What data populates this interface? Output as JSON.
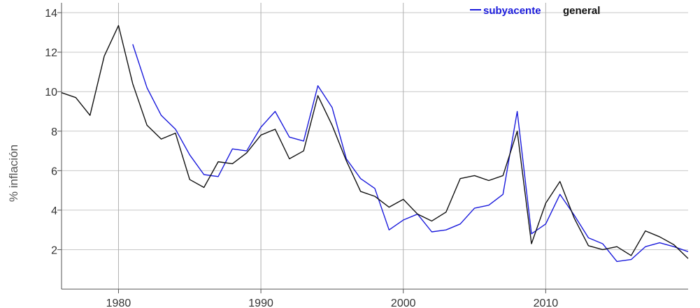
{
  "chart_data": {
    "type": "line",
    "ylabel": "% inflación",
    "xlim": [
      1976,
      2020
    ],
    "ylim": [
      0,
      14.5
    ],
    "x_ticks": [
      1980,
      1990,
      2000,
      2010
    ],
    "y_ticks": [
      2,
      4,
      6,
      8,
      10,
      12,
      14
    ],
    "grid": true,
    "legend_position": "top-right",
    "series": [
      {
        "name": "subyacente",
        "color": "#1a1adc",
        "x": [
          1981,
          1982,
          1983,
          1984,
          1985,
          1986,
          1987,
          1988,
          1989,
          1990,
          1991,
          1992,
          1993,
          1994,
          1995,
          1996,
          1997,
          1998,
          1999,
          2000,
          2001,
          2002,
          2003,
          2004,
          2005,
          2006,
          2007,
          2008,
          2009,
          2010,
          2011,
          2012,
          2013,
          2014,
          2015,
          2016,
          2017,
          2018,
          2019,
          2020
        ],
        "values": [
          12.4,
          10.2,
          8.8,
          8.1,
          6.8,
          5.8,
          5.7,
          7.1,
          7.0,
          8.2,
          9.0,
          7.7,
          7.5,
          10.3,
          9.2,
          6.6,
          5.6,
          5.1,
          3.0,
          3.5,
          3.8,
          2.9,
          3.0,
          3.3,
          4.1,
          4.25,
          4.8,
          9.0,
          2.8,
          3.3,
          4.8,
          3.75,
          2.6,
          2.3,
          1.4,
          1.5,
          2.15,
          2.35,
          2.15,
          1.9
        ]
      },
      {
        "name": "general",
        "color": "#111111",
        "x": [
          1976,
          1977,
          1978,
          1979,
          1980,
          1981,
          1982,
          1983,
          1984,
          1985,
          1986,
          1987,
          1988,
          1989,
          1990,
          1991,
          1992,
          1993,
          1994,
          1995,
          1996,
          1997,
          1998,
          1999,
          2000,
          2001,
          2002,
          2003,
          2004,
          2005,
          2006,
          2007,
          2008,
          2009,
          2010,
          2011,
          2012,
          2013,
          2014,
          2015,
          2016,
          2017,
          2018,
          2019,
          2020
        ],
        "values": [
          9.95,
          9.7,
          8.8,
          11.8,
          13.35,
          10.4,
          8.3,
          7.6,
          7.9,
          5.55,
          5.15,
          6.45,
          6.35,
          6.9,
          7.8,
          8.1,
          6.6,
          7.0,
          9.8,
          8.3,
          6.5,
          4.95,
          4.7,
          4.15,
          4.55,
          3.8,
          3.45,
          3.9,
          5.6,
          5.75,
          5.5,
          5.75,
          8.0,
          2.3,
          4.35,
          5.45,
          3.6,
          2.2,
          2.0,
          2.15,
          1.7,
          2.95,
          2.65,
          2.25,
          1.55
        ]
      }
    ]
  }
}
